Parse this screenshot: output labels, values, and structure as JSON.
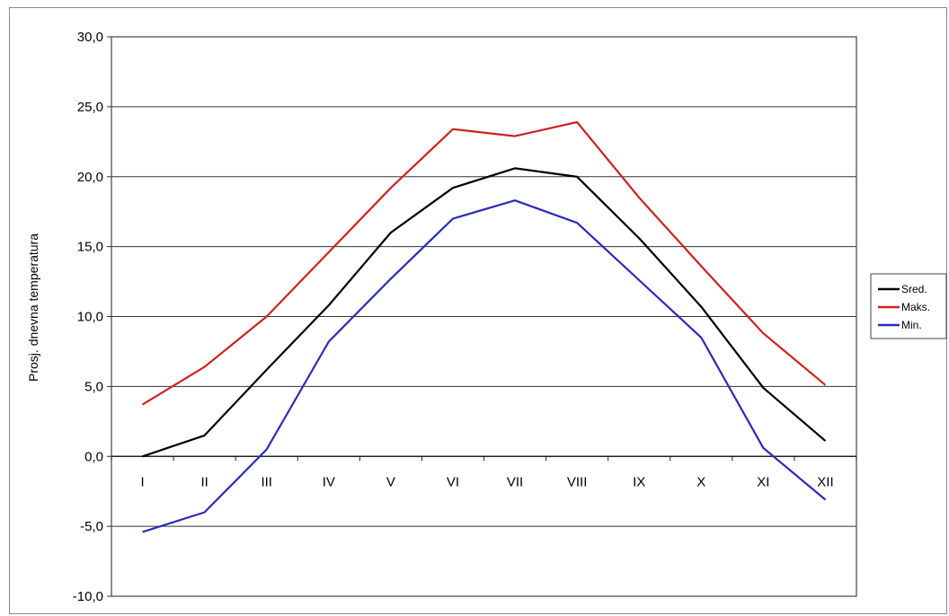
{
  "chart_data": {
    "type": "line",
    "title": "",
    "xlabel": "",
    "ylabel": "Prosj. dnevna temperatura",
    "categories": [
      "I",
      "II",
      "III",
      "IV",
      "V",
      "VI",
      "VII",
      "VIII",
      "IX",
      "X",
      "XI",
      "XII"
    ],
    "ylim": [
      -10,
      30
    ],
    "yticks": [
      "30,0",
      "25,0",
      "20,0",
      "15,0",
      "10,0",
      "5,0",
      "0,0",
      "-5,0",
      "-10,0"
    ],
    "ytick_values": [
      30,
      25,
      20,
      15,
      10,
      5,
      0,
      -5,
      -10
    ],
    "grid": true,
    "legend_position": "right",
    "series": [
      {
        "name": "Sred.",
        "color": "#000000",
        "values": [
          0.0,
          1.5,
          6.2,
          10.8,
          16.0,
          19.2,
          20.6,
          20.0,
          15.6,
          10.7,
          4.9,
          1.1
        ]
      },
      {
        "name": "Maks.",
        "color": "#cc2222",
        "values": [
          3.7,
          6.4,
          10.0,
          14.6,
          19.2,
          23.4,
          22.9,
          23.9,
          18.5,
          13.6,
          8.8,
          5.1
        ]
      },
      {
        "name": "Min.",
        "color": "#2a2ab8",
        "values": [
          -5.4,
          -4.0,
          0.5,
          8.2,
          12.7,
          17.0,
          18.3,
          16.7,
          12.6,
          8.5,
          0.6,
          -3.1
        ]
      }
    ]
  }
}
